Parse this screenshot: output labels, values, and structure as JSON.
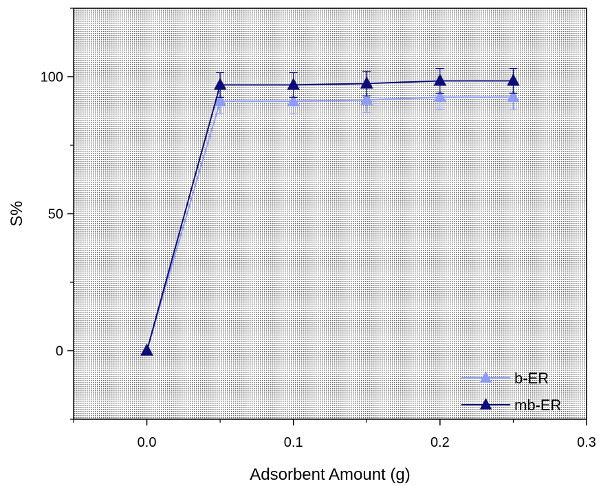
{
  "chart_data": {
    "type": "line",
    "title": "",
    "xlabel": "Adsorbent Amount (g)",
    "ylabel": "S%",
    "xlim": [
      -0.05,
      0.3
    ],
    "ylim": [
      -25,
      125
    ],
    "xticks": [
      0.0,
      0.1,
      0.2,
      0.3
    ],
    "xtick_labels": [
      "0.0",
      "0.1",
      "0.2",
      "0.3"
    ],
    "yticks": [
      0,
      50,
      100
    ],
    "ytick_labels": [
      "0",
      "50",
      "100"
    ],
    "grid": false,
    "background": "dense dotted texture",
    "legend_position": "bottom-right",
    "marker": "triangle",
    "series": [
      {
        "name": "b-ER",
        "color": "#8f9cf6",
        "x": [
          0.0,
          0.05,
          0.1,
          0.15,
          0.2,
          0.25
        ],
        "y": [
          0,
          91,
          91,
          91.5,
          92.5,
          92.5
        ],
        "error": [
          0,
          4.5,
          4.5,
          4.5,
          4.5,
          4.5
        ]
      },
      {
        "name": "mb-ER",
        "color": "#0d0d78",
        "x": [
          0.0,
          0.05,
          0.1,
          0.15,
          0.2,
          0.25
        ],
        "y": [
          0,
          97,
          97,
          97.5,
          98.5,
          98.5
        ],
        "error": [
          0,
          4.5,
          4.5,
          4.5,
          4.5,
          4.5
        ]
      }
    ]
  }
}
